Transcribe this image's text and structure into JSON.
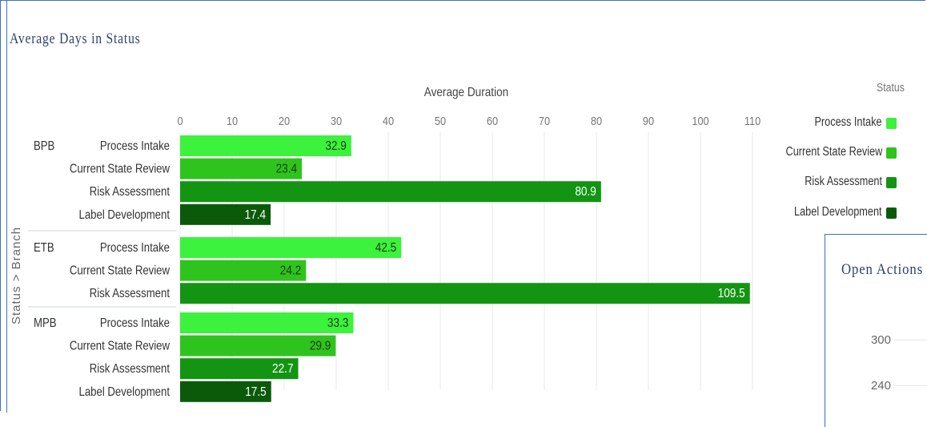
{
  "page": {
    "title": "Average  Days  in Status"
  },
  "legend": {
    "title": "Status",
    "items": [
      {
        "label": "Process Intake",
        "color": "#3cf23c"
      },
      {
        "label": "Current State Review",
        "color": "#2fc41d"
      },
      {
        "label": "Risk Assessment",
        "color": "#139513"
      },
      {
        "label": "Label Development",
        "color": "#0a5a0a"
      }
    ]
  },
  "inset": {
    "title": "Open  Actions",
    "ticks": [
      "300",
      "240"
    ]
  },
  "chart_data": {
    "type": "bar",
    "orientation": "horizontal",
    "title": "Average  Days  in Status",
    "xlabel": "Average Duration",
    "ylabel": "Status > Branch",
    "xlim": [
      0,
      115
    ],
    "xticks": [
      0,
      10,
      20,
      30,
      40,
      50,
      60,
      70,
      80,
      90,
      100,
      110
    ],
    "grid": true,
    "legend_position": "right",
    "colors": {
      "Process Intake": "#3cf23c",
      "Current State Review": "#2fc41d",
      "Risk Assessment": "#139513",
      "Label Development": "#0a5a0a"
    },
    "groups": [
      {
        "branch": "BPB",
        "bars": [
          {
            "status": "Process Intake",
            "value": 32.9
          },
          {
            "status": "Current State Review",
            "value": 23.4
          },
          {
            "status": "Risk Assessment",
            "value": 80.9
          },
          {
            "status": "Label Development",
            "value": 17.4
          }
        ]
      },
      {
        "branch": "ETB",
        "bars": [
          {
            "status": "Process Intake",
            "value": 42.5
          },
          {
            "status": "Current State Review",
            "value": 24.2
          },
          {
            "status": "Risk Assessment",
            "value": 109.5
          }
        ]
      },
      {
        "branch": "MPB",
        "bars": [
          {
            "status": "Process Intake",
            "value": 33.3
          },
          {
            "status": "Current State Review",
            "value": 29.9
          },
          {
            "status": "Risk Assessment",
            "value": 22.7
          },
          {
            "status": "Label Development",
            "value": 17.5
          }
        ]
      }
    ]
  }
}
